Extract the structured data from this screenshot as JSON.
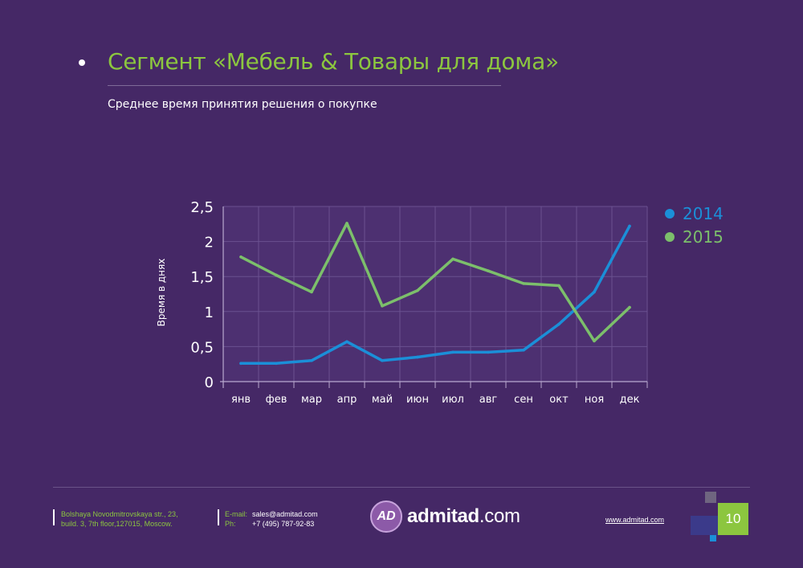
{
  "header": {
    "title": "Сегмент «Мебель & Товары для дома»",
    "subtitle": "Среднее время принятия решения о покупке"
  },
  "chart_data": {
    "type": "line",
    "categories": [
      "янв",
      "фев",
      "мар",
      "апр",
      "май",
      "июн",
      "июл",
      "авг",
      "сен",
      "окт",
      "ноя",
      "дек"
    ],
    "series": [
      {
        "name": "2014",
        "color": "#1b8fd8",
        "values": [
          0.26,
          0.26,
          0.3,
          0.57,
          0.3,
          0.35,
          0.42,
          0.42,
          0.45,
          0.82,
          1.28,
          2.22
        ]
      },
      {
        "name": "2015",
        "color": "#7cbf6b",
        "values": [
          1.78,
          1.52,
          1.28,
          2.26,
          1.08,
          1.3,
          1.75,
          1.58,
          1.4,
          1.37,
          0.58,
          1.06
        ]
      }
    ],
    "yticks": [
      "0",
      "0,5",
      "1",
      "1,5",
      "2",
      "2,5"
    ],
    "ylim": [
      0,
      2.5
    ],
    "ylabel": "Время в днях",
    "xlabel": "",
    "grid": true,
    "legend_position": "top-right"
  },
  "footer": {
    "address_line1": "Bolshaya Novodmitrovskaya str., 23,",
    "address_line2": "build. 3, 7th floor,127015, Moscow.",
    "email_label": "E-mail:",
    "email": "sales@admitad.com",
    "phone_label": "Ph:",
    "phone": "+7 (495) 787-92-83",
    "logo_mark": "AD",
    "logo_bold": "admitad",
    "logo_rest": ".com",
    "website": "www.admitad.com",
    "page_number": "10"
  },
  "colors": {
    "background": "#452866",
    "accent_green": "#8cc63f",
    "blue": "#1b8fd8"
  }
}
